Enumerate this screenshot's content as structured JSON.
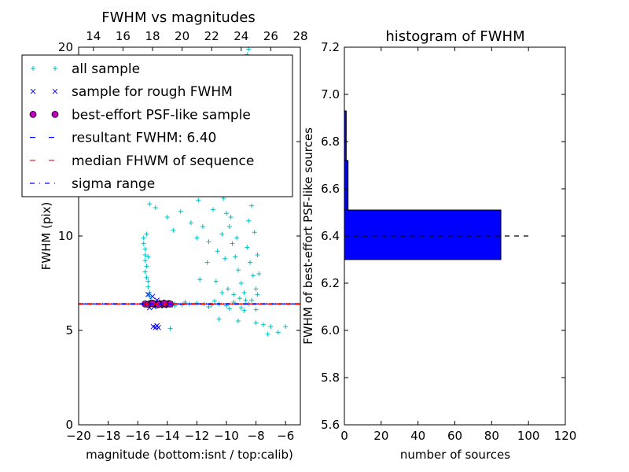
{
  "chart_data": [
    {
      "type": "scatter",
      "title": "FWHM vs magnitudes",
      "xlabel": "magnitude (bottom:isnt / top:calib)",
      "ylabel": "FWHM (pix)",
      "xlim": [
        -20,
        -5
      ],
      "ylim": [
        0,
        20
      ],
      "top_xlim": [
        13,
        28
      ],
      "x_ticks": [
        -20,
        -18,
        -16,
        -14,
        -12,
        -10,
        -8,
        -6
      ],
      "top_x_ticks": [
        14,
        16,
        18,
        20,
        22,
        24,
        26,
        28
      ],
      "y_ticks": [
        0,
        5,
        10,
        15,
        20
      ],
      "legend_placement": "upper-left",
      "legend": [
        {
          "label": "all sample",
          "marker": "plus",
          "color": "#00bfbf"
        },
        {
          "label": "sample for rough FWHM",
          "marker": "x",
          "color": "#0000ff"
        },
        {
          "label": "best-effort PSF-like sample",
          "marker": "circle",
          "color": "#bf00bf"
        },
        {
          "label": "resultant FWHM: 6.40",
          "marker": "dashed",
          "color": "#0000ff"
        },
        {
          "label": "median FHWM of sequence",
          "marker": "dashed",
          "color": "#ff0000"
        },
        {
          "label": "sigma range",
          "marker": "dashdot",
          "color": "#0000ff"
        }
      ],
      "reference_lines": [
        {
          "name": "resultant FWHM",
          "y": 6.4
        },
        {
          "name": "median FHWM of sequence",
          "y": 6.4
        },
        {
          "name": "sigma range",
          "y": [
            6.38,
            6.42
          ]
        }
      ],
      "series": [
        {
          "name": "all sample",
          "points": [
            [
              -15.6,
              9.9
            ],
            [
              -15.6,
              9.6
            ],
            [
              -15.5,
              9.3
            ],
            [
              -15.5,
              9.0
            ],
            [
              -15.5,
              8.7
            ],
            [
              -15.4,
              8.4
            ],
            [
              -15.5,
              8.1
            ],
            [
              -15.4,
              7.8
            ],
            [
              -15.3,
              7.6
            ],
            [
              -15.3,
              7.3
            ],
            [
              -15.2,
              7.0
            ],
            [
              -15.2,
              6.8
            ],
            [
              -15.1,
              6.6
            ],
            [
              -15.4,
              10.1
            ],
            [
              -15.3,
              8.9
            ],
            [
              -14.9,
              6.5
            ],
            [
              -14.5,
              6.4
            ],
            [
              -14.0,
              6.4
            ],
            [
              -13.5,
              6.4
            ],
            [
              -13.0,
              6.35
            ],
            [
              -12.5,
              6.4
            ],
            [
              -12.0,
              6.45
            ],
            [
              -11.5,
              6.4
            ],
            [
              -11.0,
              6.35
            ],
            [
              -10.5,
              6.4
            ],
            [
              -10.0,
              6.3
            ],
            [
              -9.5,
              6.5
            ],
            [
              -9.0,
              6.2
            ],
            [
              -8.5,
              6.4
            ],
            [
              -8.0,
              6.1
            ],
            [
              -13.5,
              6.3
            ],
            [
              -12.8,
              6.5
            ],
            [
              -11.2,
              6.25
            ],
            [
              -10.8,
              6.55
            ],
            [
              -9.8,
              6.15
            ],
            [
              -8.8,
              6.05
            ],
            [
              -13.8,
              5.1
            ],
            [
              -10.5,
              5.6
            ],
            [
              -9.2,
              5.5
            ],
            [
              -8.0,
              5.4
            ],
            [
              -7.5,
              5.3
            ],
            [
              -7.0,
              5.2
            ],
            [
              -6.5,
              4.9
            ],
            [
              -6.0,
              5.2
            ],
            [
              -7.2,
              4.8
            ],
            [
              -14.5,
              15.5
            ],
            [
              -14.0,
              15.0
            ],
            [
              -13.5,
              14.8
            ],
            [
              -13.0,
              15.2
            ],
            [
              -12.5,
              14.2
            ],
            [
              -12.0,
              14.5
            ],
            [
              -15.2,
              11.7
            ],
            [
              -14.8,
              11.5
            ],
            [
              -14.0,
              11.0
            ],
            [
              -13.6,
              10.3
            ],
            [
              -13.1,
              11.3
            ],
            [
              -12.4,
              10.7
            ],
            [
              -12.0,
              9.9
            ],
            [
              -11.6,
              10.5
            ],
            [
              -11.2,
              9.7
            ],
            [
              -10.9,
              11.4
            ],
            [
              -10.6,
              9.2
            ],
            [
              -10.3,
              10.1
            ],
            [
              -11.3,
              8.6
            ],
            [
              -11.8,
              7.7
            ],
            [
              -10.2,
              12.0
            ],
            [
              -10.0,
              11.2
            ],
            [
              -9.8,
              10.5
            ],
            [
              -9.6,
              9.6
            ],
            [
              -9.4,
              8.9
            ],
            [
              -9.2,
              8.2
            ],
            [
              -9.0,
              7.5
            ],
            [
              -8.8,
              7.0
            ],
            [
              -8.6,
              9.4
            ],
            [
              -8.4,
              8.6
            ],
            [
              -8.2,
              7.9
            ],
            [
              -8.0,
              7.2
            ],
            [
              -8.5,
              10.8
            ],
            [
              -8.3,
              11.6
            ],
            [
              -8.1,
              10.2
            ],
            [
              -8.6,
              12.4
            ],
            [
              -9.0,
              13.0
            ],
            [
              -9.3,
              14.0
            ],
            [
              -9.6,
              13.5
            ],
            [
              -9.9,
              14.5
            ],
            [
              -10.1,
              13.2
            ],
            [
              -10.4,
              14.7
            ],
            [
              -10.7,
              12.6
            ],
            [
              -11.0,
              13.8
            ],
            [
              -9.5,
              15.6
            ],
            [
              -9.2,
              16.5
            ],
            [
              -9.0,
              17.4
            ],
            [
              -8.9,
              18.2
            ],
            [
              -8.7,
              19.0
            ],
            [
              -8.6,
              19.6
            ],
            [
              -8.5,
              19.9
            ],
            [
              -9.7,
              16.2
            ],
            [
              -10.0,
              17.0
            ],
            [
              -10.2,
              18.0
            ],
            [
              -10.5,
              16.8
            ],
            [
              -9.8,
              18.6
            ],
            [
              -9.4,
              19.3
            ],
            [
              -8.4,
              14.6
            ],
            [
              -8.2,
              13.4
            ],
            [
              -8.0,
              12.2
            ],
            [
              -7.9,
              9.0
            ],
            [
              -7.8,
              8.0
            ],
            [
              -7.9,
              6.9
            ],
            [
              -8.3,
              6.6
            ],
            [
              -8.7,
              6.6
            ],
            [
              -9.1,
              6.7
            ],
            [
              -9.5,
              6.9
            ],
            [
              -9.9,
              7.2
            ],
            [
              -10.3,
              7.0
            ],
            [
              -10.7,
              7.6
            ],
            [
              -9.3,
              9.9
            ],
            [
              -9.7,
              11.0
            ],
            [
              -10.1,
              8.8
            ],
            [
              -11.5,
              12.5
            ],
            [
              -12.2,
              13.1
            ],
            [
              -11.9,
              11.9
            ],
            [
              -10.8,
              15.9
            ],
            [
              -11.4,
              14.9
            ],
            [
              -12.8,
              12.8
            ],
            [
              -13.3,
              13.6
            ]
          ]
        },
        {
          "name": "sample for rough FWHM",
          "points": [
            [
              -15.3,
              6.9
            ],
            [
              -15.0,
              6.8
            ],
            [
              -14.7,
              6.6
            ],
            [
              -14.4,
              6.5
            ],
            [
              -14.1,
              6.4
            ],
            [
              -13.8,
              6.35
            ],
            [
              -15.2,
              6.2
            ],
            [
              -14.9,
              6.25
            ],
            [
              -14.5,
              6.3
            ],
            [
              -14.2,
              6.3
            ],
            [
              -14.95,
              5.2
            ],
            [
              -14.8,
              5.15
            ],
            [
              -14.7,
              5.25
            ],
            [
              -14.6,
              5.15
            ]
          ]
        },
        {
          "name": "best-effort PSF-like sample",
          "points": [
            [
              -15.5,
              6.4
            ],
            [
              -15.3,
              6.38
            ],
            [
              -15.1,
              6.42
            ],
            [
              -14.9,
              6.4
            ],
            [
              -14.7,
              6.39
            ],
            [
              -14.5,
              6.41
            ],
            [
              -14.3,
              6.4
            ],
            [
              -14.1,
              6.38
            ],
            [
              -13.9,
              6.42
            ],
            [
              -13.8,
              6.4
            ],
            [
              -15.0,
              6.43
            ],
            [
              -14.6,
              6.37
            ],
            [
              -14.2,
              6.43
            ]
          ]
        }
      ]
    },
    {
      "type": "bar",
      "orientation": "horizontal",
      "title": "histogram of FWHM",
      "xlabel": "number of sources",
      "ylabel": "FWHM of best-effort PSF-like sources",
      "xlim": [
        0,
        120
      ],
      "ylim": [
        5.6,
        7.2
      ],
      "x_ticks": [
        0,
        20,
        40,
        60,
        80,
        100,
        120
      ],
      "y_ticks": [
        5.6,
        5.8,
        6.0,
        6.2,
        6.4,
        6.6,
        6.8,
        7.0,
        7.2
      ],
      "bins": [
        {
          "y0": 6.3,
          "y1": 6.51,
          "count": 85
        },
        {
          "y0": 6.51,
          "y1": 6.72,
          "count": 2
        },
        {
          "y0": 6.72,
          "y1": 6.93,
          "count": 1
        },
        {
          "y0": 6.93,
          "y1": 7.14,
          "count": 0
        }
      ],
      "reference_line": {
        "y": 6.4,
        "x_extent": [
          0,
          102
        ]
      },
      "bar_color": "#0000ff"
    }
  ]
}
